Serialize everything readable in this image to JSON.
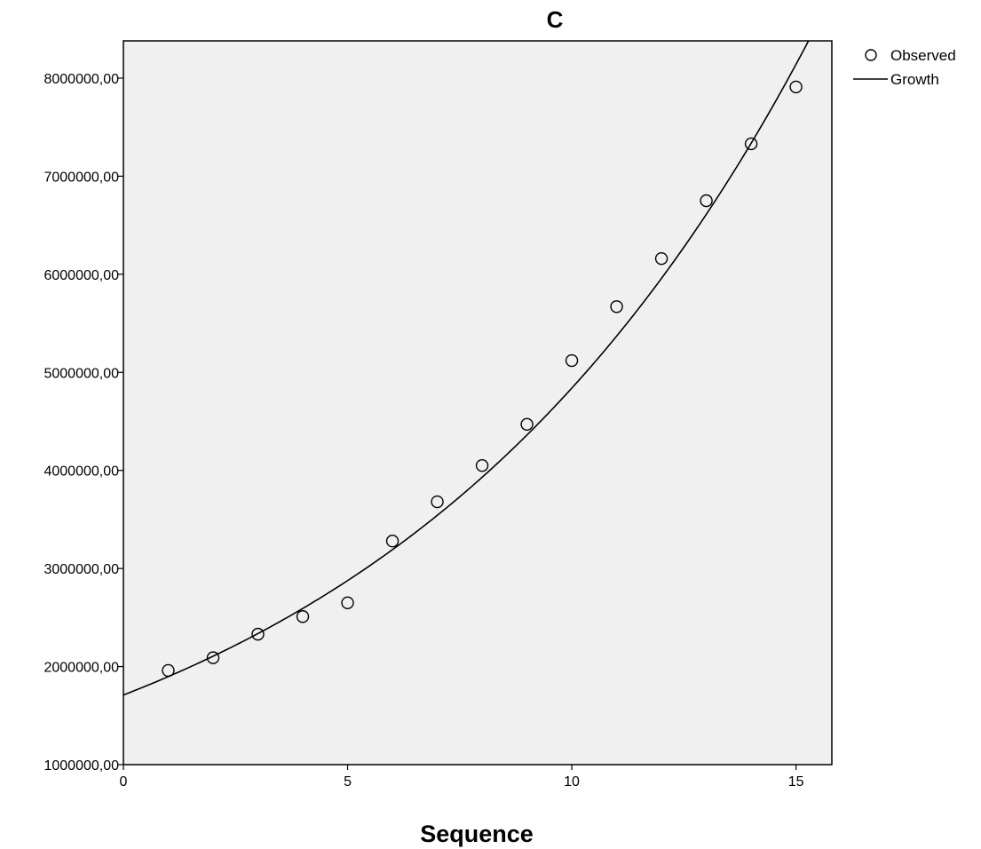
{
  "chart_data": {
    "type": "scatter",
    "title": "C",
    "xlabel": "Sequence",
    "ylabel": "",
    "xlim": [
      0,
      15.8
    ],
    "ylim": [
      1000000,
      8380000
    ],
    "x_ticks": [
      0,
      5,
      10,
      15
    ],
    "y_ticks": [
      1000000,
      2000000,
      3000000,
      4000000,
      5000000,
      6000000,
      7000000,
      8000000
    ],
    "y_tick_labels": [
      "1000000,00",
      "2000000,00",
      "3000000,00",
      "4000000,00",
      "5000000,00",
      "6000000,00",
      "7000000,00",
      "8000000,00"
    ],
    "x_tick_labels": [
      "0",
      "5",
      "10",
      "15"
    ],
    "grid": false,
    "legend_position": "top-right outside",
    "series": [
      {
        "name": "Observed",
        "kind": "points",
        "marker": "open-circle",
        "x": [
          1,
          2,
          3,
          4,
          5,
          6,
          7,
          8,
          9,
          10,
          11,
          12,
          13,
          14,
          15
        ],
        "y": [
          1960000,
          2090000,
          2330000,
          2510000,
          2650000,
          3280000,
          3680000,
          4050000,
          4470000,
          5120000,
          5670000,
          6160000,
          6750000,
          7330000,
          7910000
        ]
      },
      {
        "name": "Growth",
        "kind": "curve",
        "x": [
          0,
          2,
          4,
          6,
          8,
          10,
          12,
          14,
          15
        ],
        "y": [
          1710000,
          2100000,
          2590000,
          3190000,
          3930000,
          4840000,
          5960000,
          7340000,
          8140000
        ]
      }
    ],
    "colors": {
      "plot_background": "#f0f0f0",
      "line": "#000000",
      "marker_stroke": "#000000"
    }
  }
}
